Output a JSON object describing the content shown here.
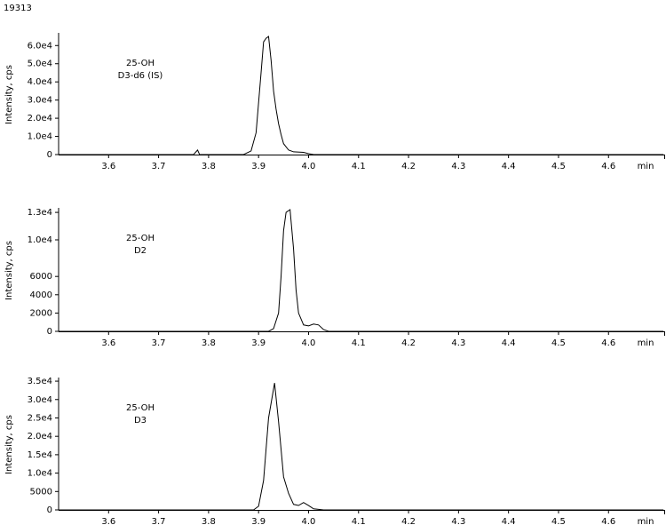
{
  "figure_id": "19313",
  "chart_data": [
    {
      "type": "line",
      "ylabel": "Intensity, cps",
      "xlabel": "min",
      "annotation": [
        "25-OH",
        "D3-d6 (IS)"
      ],
      "color": "#000000",
      "x": [
        3.5,
        3.77,
        3.778,
        3.782,
        3.87,
        3.885,
        3.895,
        3.905,
        3.91,
        3.915,
        3.92,
        3.925,
        3.93,
        3.935,
        3.94,
        3.945,
        3.95,
        3.96,
        3.97,
        3.99,
        4.0,
        4.01,
        4.71
      ],
      "values": [
        0,
        0,
        2500,
        0,
        0,
        2000,
        12000,
        45000,
        62000,
        64000,
        65000,
        52000,
        35000,
        25000,
        17000,
        11000,
        6000,
        2500,
        1500,
        1200,
        500,
        0,
        0
      ],
      "xlim": [
        3.5,
        4.715
      ],
      "ylim": [
        0,
        66000
      ],
      "xticks": [
        3.6,
        3.7,
        3.8,
        3.9,
        {
          "value": 4,
          "label": "4.0"
        },
        4.1,
        4.2,
        4.3,
        4.4,
        4.5,
        4.6
      ],
      "yticks": [
        0,
        {
          "value": 10000,
          "label": "1.0e4"
        },
        {
          "value": 20000,
          "label": "2.0e4"
        },
        {
          "value": 30000,
          "label": "3.0e4"
        },
        {
          "value": 40000,
          "label": "4.0e4"
        },
        {
          "value": 50000,
          "label": "5.0e4"
        },
        {
          "value": 60000,
          "label": "6.0e4"
        }
      ]
    },
    {
      "type": "line",
      "ylabel": "Intensity, cps",
      "xlabel": "min",
      "annotation": [
        "25-OH",
        "D2"
      ],
      "color": "#000000",
      "x": [
        3.5,
        3.92,
        3.93,
        3.94,
        3.945,
        3.95,
        3.955,
        3.963,
        3.97,
        3.975,
        3.98,
        3.99,
        4.0,
        4.01,
        4.02,
        4.03,
        4.04,
        4.71
      ],
      "values": [
        0,
        0,
        300,
        2000,
        6000,
        11000,
        13000,
        13300,
        9000,
        4500,
        2000,
        700,
        600,
        800,
        700,
        200,
        0,
        0
      ],
      "xlim": [
        3.5,
        4.715
      ],
      "ylim": [
        0,
        13300
      ],
      "xticks": [
        3.6,
        3.7,
        3.8,
        3.9,
        {
          "value": 4,
          "label": "4.0"
        },
        4.1,
        4.2,
        4.3,
        4.4,
        4.5,
        4.6
      ],
      "yticks": [
        0,
        2000,
        4000,
        6000,
        {
          "value": 10000,
          "label": "1.0e4"
        },
        {
          "value": 13000,
          "label": "1.3e4"
        }
      ]
    },
    {
      "type": "line",
      "ylabel": "Intensity, cps",
      "xlabel": "min",
      "annotation": [
        "25-OH",
        "D3"
      ],
      "color": "#000000",
      "x": [
        3.5,
        3.89,
        3.9,
        3.91,
        3.92,
        3.932,
        3.94,
        3.95,
        3.96,
        3.97,
        3.98,
        3.99,
        4.0,
        4.01,
        4.03,
        4.71
      ],
      "values": [
        0,
        0,
        1000,
        8000,
        25000,
        34500,
        24000,
        9000,
        4500,
        1500,
        1200,
        2000,
        1200,
        300,
        0,
        0
      ],
      "xlim": [
        3.5,
        4.715
      ],
      "ylim": [
        0,
        35500
      ],
      "xticks": [
        3.6,
        3.7,
        3.8,
        3.9,
        {
          "value": 4,
          "label": "4.0"
        },
        4.1,
        4.2,
        4.3,
        4.4,
        4.5,
        4.6
      ],
      "yticks": [
        0,
        5000,
        {
          "value": 10000,
          "label": "1.0e4"
        },
        {
          "value": 15000,
          "label": "1.5e4"
        },
        {
          "value": 20000,
          "label": "2.0e4"
        },
        {
          "value": 25000,
          "label": "2.5e4"
        },
        {
          "value": 30000,
          "label": "3.0e4"
        },
        {
          "value": 35000,
          "label": "3.5e4"
        }
      ]
    }
  ]
}
